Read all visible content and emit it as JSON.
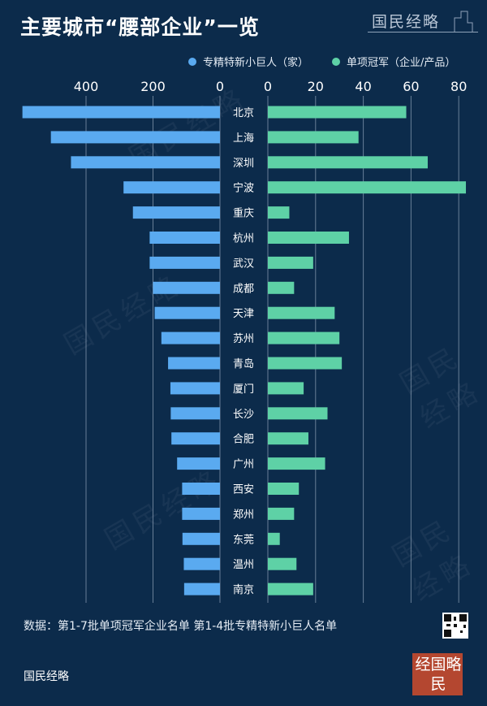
{
  "title": "主要城市“腰部企业”一览",
  "logo_text": "国民经略",
  "watermark": "国民经略",
  "stamp_text": "经国略民",
  "legend": [
    {
      "label": "专精特新小巨人（家）",
      "color": "#5aaaf0"
    },
    {
      "label": "单项冠军（企业/产品）",
      "color": "#5ed1a6"
    }
  ],
  "source": "数据：第1-7批单项冠军企业名单 第1-4批专精特新小巨人名单",
  "brand": "国民经略",
  "chart_data": {
    "type": "bar",
    "categories": [
      "北京",
      "上海",
      "深圳",
      "宁波",
      "重庆",
      "杭州",
      "武汉",
      "成都",
      "天津",
      "苏州",
      "青岛",
      "厦门",
      "长沙",
      "合肥",
      "广州",
      "西安",
      "郑州",
      "东莞",
      "温州",
      "南京"
    ],
    "series": [
      {
        "name": "专精特新小巨人（家）",
        "values": [
          590,
          505,
          445,
          288,
          260,
          210,
          210,
          200,
          195,
          175,
          155,
          148,
          147,
          145,
          128,
          113,
          113,
          112,
          108,
          107
        ]
      },
      {
        "name": "单项冠军（企业/产品）",
        "values": [
          58,
          38,
          67,
          83,
          9,
          34,
          19,
          11,
          28,
          30,
          31,
          15,
          25,
          17,
          24,
          13,
          11,
          5,
          12,
          19
        ]
      }
    ],
    "left_axis": {
      "ticks": [
        400,
        200,
        0
      ],
      "max": 600
    },
    "right_axis": {
      "ticks": [
        0,
        20,
        40,
        60,
        80
      ],
      "max": 85
    },
    "colors": {
      "left": "#5aaaf0",
      "right": "#5ed1a6",
      "grid": "#8fa2b8"
    }
  }
}
